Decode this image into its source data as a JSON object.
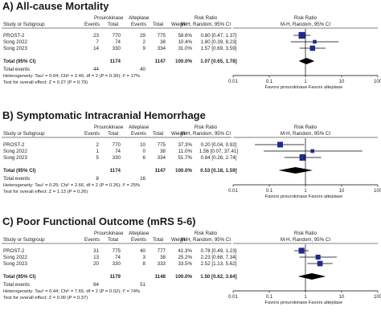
{
  "headers": {
    "study": "Study or Subgroup",
    "group1": "Prourokinase",
    "group2": "Alteplase",
    "events": "Events",
    "total": "Total",
    "weight": "Weight",
    "rr": "Risk Ratio",
    "method": "M-H, Random, 95% CI"
  },
  "axis_ticks": [
    "0.01",
    "0.1",
    "1",
    "10",
    "100"
  ],
  "favors_left": "Favors prourokinase",
  "favors_right": "Favors alteplase",
  "total_label": "Total (95% CI)",
  "total_events_label": "Total events",
  "chart_data": [
    {
      "type": "forest",
      "title": "A) All-cause Mortality",
      "x_scale": "log",
      "xlim": [
        0.01,
        100
      ],
      "studies": [
        {
          "name": "PROST-2",
          "e1": "23",
          "n1": "770",
          "e2": "29",
          "n2": "775",
          "weight": "58.6%",
          "ci_text": "0.80 [0.47, 1.37]",
          "rr": 0.8,
          "lo": 0.47,
          "hi": 1.37
        },
        {
          "name": "Song 2022",
          "e1": "7",
          "n1": "74",
          "e2": "2",
          "n2": "38",
          "weight": "10.4%",
          "ci_text": "1.80 [0.39, 8.23]",
          "rr": 1.8,
          "lo": 0.39,
          "hi": 8.23
        },
        {
          "name": "Song 2023",
          "e1": "14",
          "n1": "330",
          "e2": "9",
          "n2": "334",
          "weight": "31.0%",
          "ci_text": "1.57 [0.69, 3.59]",
          "rr": 1.57,
          "lo": 0.69,
          "hi": 3.59
        }
      ],
      "total": {
        "n1": "1174",
        "n2": "1147",
        "weight": "100.0%",
        "ci_text": "1.07 [0.65, 1.78]",
        "rr": 1.07,
        "lo": 0.65,
        "hi": 1.78
      },
      "total_events": {
        "e1": "44",
        "e2": "40"
      },
      "heterogeneity": "Heterogeneity: Tau² = 0.04; Chi² = 2.40, df = 2 (P = 0.30); I² = 17%",
      "overall_effect": "Test for overall effect: Z = 0.27 (P = 0.79)"
    },
    {
      "type": "forest",
      "title": "B) Symptomatic Intracranial Hemorrhage",
      "x_scale": "log",
      "xlim": [
        0.01,
        100
      ],
      "studies": [
        {
          "name": "PROST-2",
          "e1": "2",
          "n1": "770",
          "e2": "10",
          "n2": "775",
          "weight": "37.3%",
          "ci_text": "0.20 [0.04, 0.92]",
          "rr": 0.2,
          "lo": 0.04,
          "hi": 0.92
        },
        {
          "name": "Song 2022",
          "e1": "1",
          "n1": "74",
          "e2": "0",
          "n2": "38",
          "weight": "11.0%",
          "ci_text": "1.56 [0.07, 37.41]",
          "rr": 1.56,
          "lo": 0.07,
          "hi": 37.41
        },
        {
          "name": "Song 2023",
          "e1": "5",
          "n1": "330",
          "e2": "6",
          "n2": "334",
          "weight": "51.7%",
          "ci_text": "0.84 [0.26, 2.74]",
          "rr": 0.84,
          "lo": 0.26,
          "hi": 2.74
        }
      ],
      "total": {
        "n1": "1174",
        "n2": "1147",
        "weight": "100.0%",
        "ci_text": "0.53 [0.18, 1.59]",
        "rr": 0.53,
        "lo": 0.18,
        "hi": 1.59
      },
      "total_events": {
        "e1": "8",
        "e2": "16"
      },
      "heterogeneity": "Heterogeneity: Tau² = 0.25; Chi² = 2.66, df = 2 (P = 0.26); I² = 25%",
      "overall_effect": "Test for overall effect: Z = 1.13 (P = 0.26)"
    },
    {
      "type": "forest",
      "title": "C) Poor Functional Outcome (mRS 5-6)",
      "x_scale": "log",
      "xlim": [
        0.01,
        100
      ],
      "studies": [
        {
          "name": "PROST-2",
          "e1": "31",
          "n1": "775",
          "e2": "40",
          "n2": "777",
          "weight": "41.3%",
          "ci_text": "0.78 [0.49, 1.23]",
          "rr": 0.78,
          "lo": 0.49,
          "hi": 1.23
        },
        {
          "name": "Song 2022",
          "e1": "13",
          "n1": "74",
          "e2": "3",
          "n2": "38",
          "weight": "25.2%",
          "ci_text": "2.23 [0.68, 7.34]",
          "rr": 2.23,
          "lo": 0.68,
          "hi": 7.34
        },
        {
          "name": "Song 2023",
          "e1": "20",
          "n1": "330",
          "e2": "8",
          "n2": "333",
          "weight": "33.5%",
          "ci_text": "2.52 [1.13, 5.62]",
          "rr": 2.52,
          "lo": 1.13,
          "hi": 5.62
        }
      ],
      "total": {
        "n1": "1179",
        "n2": "1148",
        "weight": "100.0%",
        "ci_text": "1.50 [0.62, 3.64]",
        "rr": 1.5,
        "lo": 0.62,
        "hi": 3.64
      },
      "total_events": {
        "e1": "64",
        "e2": "51"
      },
      "heterogeneity": "Heterogeneity: Tau² = 0.44; Chi² = 7.65, df = 2 (P = 0.02); I² = 74%",
      "overall_effect": "Test for overall effect: Z = 0.90 (P = 0.37)"
    }
  ],
  "colors": {
    "marker": "#1f2a8c",
    "diamond": "#000000",
    "line": "#000000",
    "text": "#222222"
  }
}
